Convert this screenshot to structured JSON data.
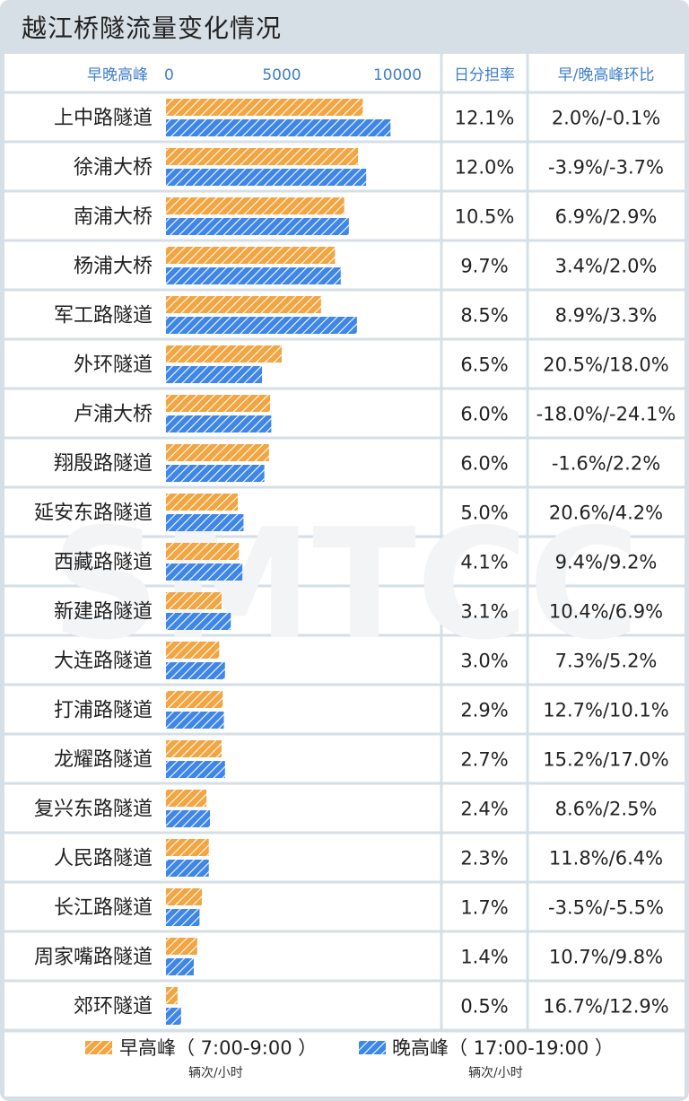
{
  "title": "越江桥隧流量变化情况",
  "chart_data": {
    "type": "bar",
    "orientation": "horizontal",
    "header": {
      "bar_column": "早晚高峰",
      "share_column": "日分担率",
      "change_column": "早/晚高峰环比"
    },
    "xlim": [
      0,
      12000
    ],
    "xticks": [
      0,
      5000,
      10000
    ],
    "categories": [
      "上中路隧道",
      "徐浦大桥",
      "南浦大桥",
      "杨浦大桥",
      "军工路隧道",
      "外环隧道",
      "卢浦大桥",
      "翔殷路隧道",
      "延安东路隧道",
      "西藏路隧道",
      "新建路隧道",
      "大连路隧道",
      "打浦路隧道",
      "龙耀路隧道",
      "复兴东路隧道",
      "人民路隧道",
      "长江路隧道",
      "周家嘴路隧道",
      "郊环隧道"
    ],
    "series": [
      {
        "name": "早高峰（7:00-9:00）",
        "color": "#f2a541",
        "values": [
          8500,
          8300,
          7700,
          7300,
          6700,
          5000,
          4500,
          4450,
          3100,
          3150,
          2400,
          2300,
          2450,
          2400,
          1750,
          1850,
          1550,
          1350,
          500
        ]
      },
      {
        "name": "晚高峰（17:00-19:00）",
        "color": "#3e86e8",
        "values": [
          9700,
          8650,
          7900,
          7550,
          8250,
          4150,
          4550,
          4250,
          3350,
          3300,
          2800,
          2550,
          2500,
          2550,
          1900,
          1850,
          1450,
          1200,
          650
        ]
      }
    ],
    "share": [
      "12.1%",
      "12.0%",
      "10.5%",
      "9.7%",
      "8.5%",
      "6.5%",
      "6.0%",
      "6.0%",
      "5.0%",
      "4.1%",
      "3.1%",
      "3.0%",
      "2.9%",
      "2.7%",
      "2.4%",
      "2.3%",
      "1.7%",
      "1.4%",
      "0.5%"
    ],
    "change": [
      "2.0%/-0.1%",
      "-3.9%/-3.7%",
      "6.9%/2.9%",
      "3.4%/2.0%",
      "8.9%/3.3%",
      "20.5%/18.0%",
      "-18.0%/-24.1%",
      "-1.6%/2.2%",
      "20.6%/4.2%",
      "9.4%/9.2%",
      "10.4%/6.9%",
      "7.3%/5.2%",
      "12.7%/10.1%",
      "15.2%/17.0%",
      "8.6%/2.5%",
      "11.8%/6.4%",
      "-3.5%/-5.5%",
      "10.7%/9.8%",
      "16.7%/12.9%"
    ],
    "legend": {
      "morning": "早高峰（ 7:00-9:00 ）",
      "evening": "晚高峰（ 17:00-19:00 ）",
      "unit": "辆次/小时"
    },
    "watermark": "SMTCC"
  }
}
